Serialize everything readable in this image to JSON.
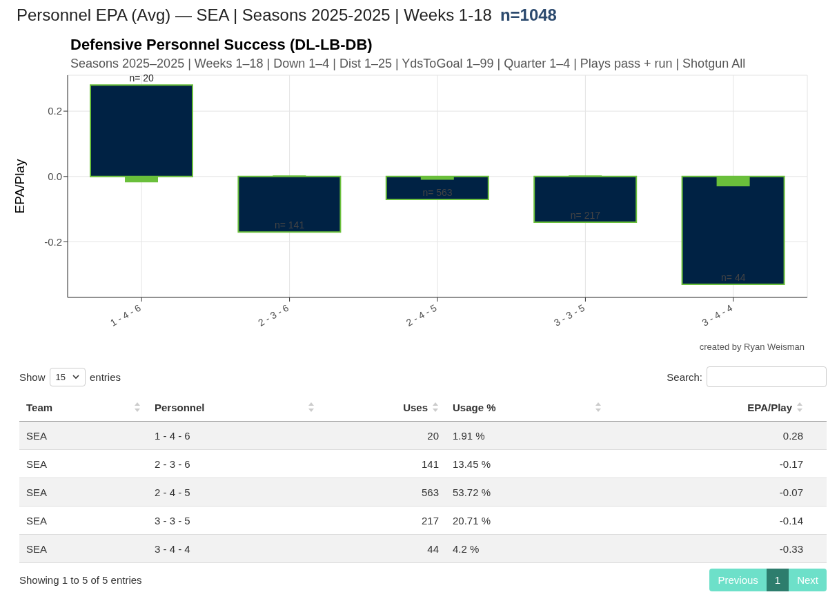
{
  "chart_data": [
    {
      "type": "other",
      "title": "Personnel EPA (Avg) — SEA | Seasons 2025-2025 | Weeks 1-18",
      "subtitle": "n=1048"
    },
    {
      "type": "bar",
      "title": "Defensive Personnel Success (DL-LB-DB)",
      "subtitle": "Seasons 2025–2025 | Weeks 1–18 | Down 1–4 | Dist 1–25 | YdsToGoal 1–99 | Quarter 1–4 | Plays pass + run | Shotgun All",
      "ylabel": "EPA/Play",
      "categories": [
        "1 - 4 - 6",
        "2 - 3 - 6",
        "2 - 4 - 5",
        "3 - 3 - 5",
        "3 - 4 - 4"
      ],
      "series": [
        {
          "color": "#002244",
          "values": [
            0.28,
            -0.17,
            -0.07,
            -0.14,
            -0.33
          ]
        },
        {
          "color": "#6abf3b",
          "values": [
            -0.018,
            0.003,
            -0.01,
            0.003,
            -0.03
          ]
        }
      ],
      "ylim": [
        -0.37,
        0.31
      ],
      "yticks": [
        {
          "value": -0.2,
          "label": "-0.2"
        },
        {
          "value": 0,
          "label": "0.0"
        },
        {
          "value": 0.2,
          "label": "0.2"
        }
      ],
      "grid": true,
      "annotations": [
        {
          "text": "n= 20",
          "x": "1 - 4 - 6",
          "y": 0.28
        },
        {
          "text": "n= 141",
          "x": "2 - 3 - 6",
          "y": -0.17
        },
        {
          "text": "n= 563",
          "x": "2 - 4 - 5",
          "y": -0.07
        },
        {
          "text": "n= 217",
          "x": "3 - 3 - 5",
          "y": -0.14
        },
        {
          "text": "n= 44",
          "x": "3 - 4 - 4",
          "y": -0.33
        },
        "created by Ryan Weisman"
      ]
    },
    {
      "type": "other",
      "annotations": [
        "Show",
        "15",
        "entries",
        "Search:",
        "Team",
        "Personnel",
        "Uses",
        "Usage %",
        "EPA/Play",
        "SEA",
        "1 - 4 - 6",
        "20",
        "1.91 %",
        "0.28",
        "SEA",
        "2 - 3 - 6",
        "141",
        "13.45 %",
        "-0.17",
        "SEA",
        "2 - 4 - 5",
        "563",
        "53.72 %",
        "-0.07",
        "SEA",
        "3 - 3 - 5",
        "217",
        "20.71 %",
        "-0.14",
        "SEA",
        "3 - 4 - 4",
        "44",
        "4.2 %",
        "-0.33",
        "Showing 1 to 5 of 5 entries",
        "Previous",
        "1",
        "Next"
      ]
    }
  ]
}
